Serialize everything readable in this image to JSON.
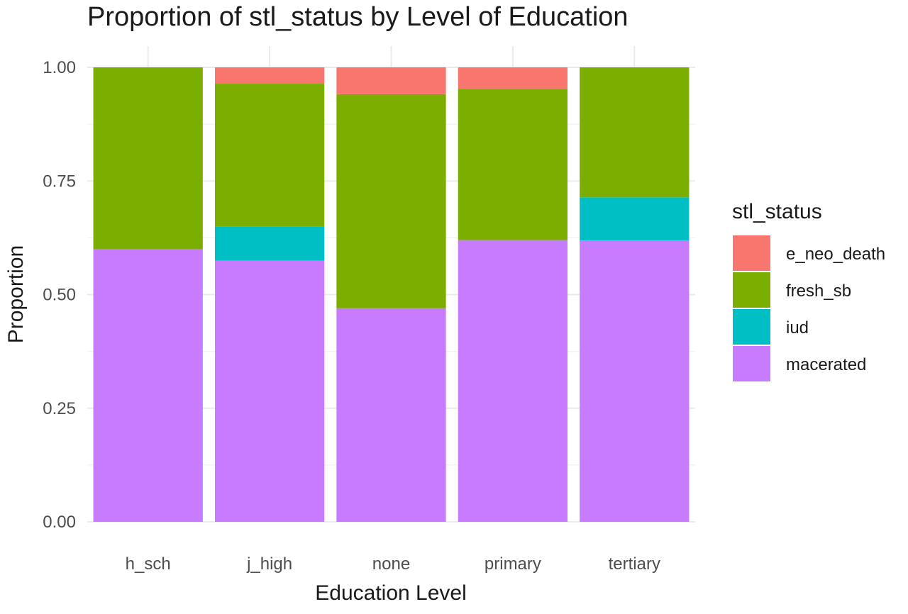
{
  "chart_data": {
    "type": "bar",
    "stacked": true,
    "title": "Proportion of stl_status by Level of Education",
    "xlabel": "Education Level",
    "ylabel": "Proportion",
    "ylim": [
      0,
      1
    ],
    "yticks": [
      "0.00",
      "0.25",
      "0.50",
      "0.75",
      "1.00"
    ],
    "ytick_values": [
      0,
      0.25,
      0.5,
      0.75,
      1.0
    ],
    "categories": [
      "h_sch",
      "j_high",
      "none",
      "primary",
      "tertiary"
    ],
    "legend_title": "stl_status",
    "legend_position": "right",
    "grid": true,
    "series": [
      {
        "name": "e_neo_death",
        "color": "#F8766D",
        "values": [
          0.0,
          0.036,
          0.059,
          0.047,
          0.0
        ]
      },
      {
        "name": "fresh_sb",
        "color": "#7CAE00",
        "values": [
          0.4,
          0.314,
          0.471,
          0.333,
          0.286
        ]
      },
      {
        "name": "iud",
        "color": "#00BFC4",
        "values": [
          0.0,
          0.075,
          0.0,
          0.0,
          0.095
        ]
      },
      {
        "name": "macerated",
        "color": "#C77CFF",
        "values": [
          0.6,
          0.575,
          0.47,
          0.62,
          0.619
        ]
      }
    ]
  }
}
